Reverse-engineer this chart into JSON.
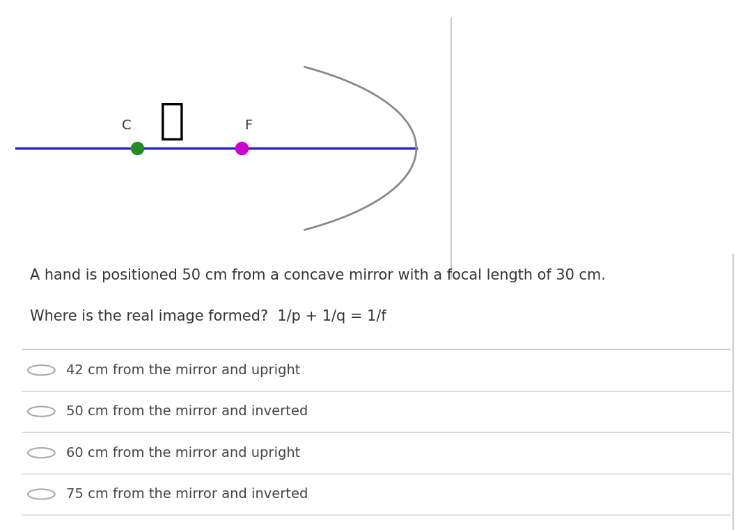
{
  "background_color": "#ffffff",
  "fig_width": 10.8,
  "fig_height": 7.62,
  "question_text_line1": "A hand is positioned 50 cm from a concave mirror with a focal length of 30 cm.",
  "question_text_line2": "Where is the real image formed?  1/p + 1/q = 1/f",
  "options": [
    "42 cm from the mirror and upright",
    "50 cm from the mirror and inverted",
    "60 cm from the mirror and upright",
    "75 cm from the mirror and inverted"
  ],
  "axis_line_color": "#2222cc",
  "mirror_color": "#888888",
  "center_dot_color": "#228B22",
  "focal_dot_color": "#cc00cc",
  "label_C": "C",
  "label_F": "F",
  "divider_color": "#cccccc",
  "text_color": "#333333",
  "option_text_color": "#444444",
  "question_fontsize": 15,
  "option_fontsize": 14,
  "label_fontsize": 14
}
